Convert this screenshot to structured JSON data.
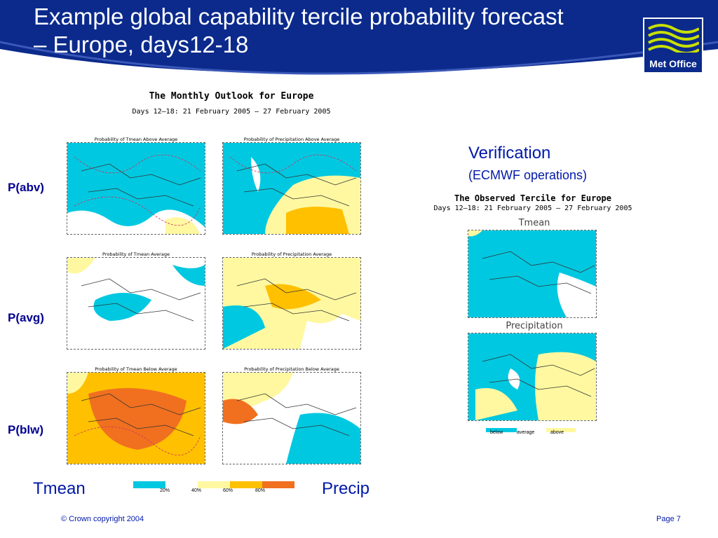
{
  "slide": {
    "title": "Example global capability tercile probability forecast – Europe, days12-18",
    "logo_text": "Met Office"
  },
  "outlook": {
    "title": "The Monthly Outlook for Europe",
    "subtitle": "Days 12–18: 21 February 2005 – 27 February 2005"
  },
  "rows": [
    {
      "label": "P(abv)"
    },
    {
      "label": "P(avg)"
    },
    {
      "label": "P(blw)"
    }
  ],
  "maps": {
    "tmean_above": "Probability of Tmean Above Average",
    "precip_above": "Probability of Precipitation Above Average",
    "tmean_avg": "Probability of Tmean Average",
    "precip_avg": "Probability of Precipitation Average",
    "tmean_below": "Probability of Tmean Below Average",
    "precip_below": "Probability of Precipitation Below Average"
  },
  "verification": {
    "title": "Verification",
    "subtitle": "(ECMWF operations)",
    "obs_title": "The Observed Tercile for Europe",
    "obs_subtitle": "Days 12–18: 21 February 2005 – 27 February 2005",
    "tmean_label": "Tmean",
    "precip_label": "Precipitation",
    "key": [
      {
        "label": "below",
        "color": "#00c8e0"
      },
      {
        "label": "average",
        "color": "#ffffff"
      },
      {
        "label": "above",
        "color": "#fff8a0"
      }
    ]
  },
  "scale": {
    "labels": [
      "20%",
      "40%",
      "60%",
      "80%"
    ],
    "colors": [
      "#00c8e0",
      "#ffffff",
      "#fff8a0",
      "#ffc000",
      "#f07020"
    ]
  },
  "bottom": {
    "left_label": "Tmean",
    "right_label": "Precip"
  },
  "footer": {
    "copyright": "© Crown copyright 2004",
    "page": "Page 7"
  },
  "colors": {
    "header_bg": "#0b2a8c",
    "cyan": "#00c8e0",
    "yellow": "#fff8a0",
    "orange": "#ffc000",
    "darkorange": "#f07020",
    "text_blue": "#0018a8"
  }
}
